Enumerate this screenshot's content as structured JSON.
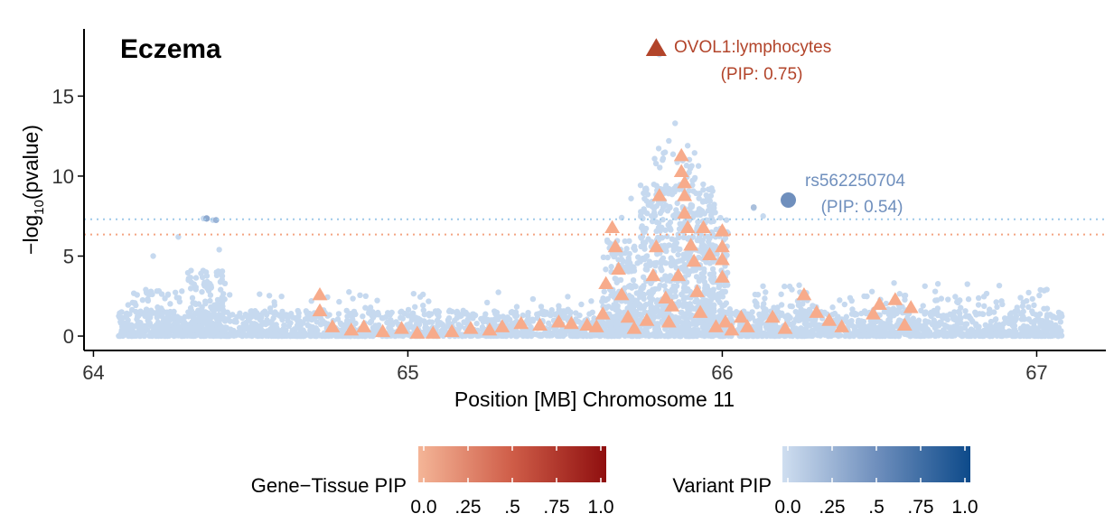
{
  "chart_data": {
    "type": "scatter",
    "title": "Eczema",
    "xlabel": "Position [MB] Chromosome 11",
    "ylabel_prefix": "−log",
    "ylabel_sub": "10",
    "ylabel_suffix": "(pvalue)",
    "xlim": [
      63.97,
      67.22
    ],
    "ylim": [
      -0.9,
      19.2
    ],
    "x_ticks": [
      64,
      65,
      66,
      67
    ],
    "y_ticks": [
      0,
      5,
      10,
      15
    ],
    "x_tick_labels": [
      "64",
      "65",
      "66",
      "67"
    ],
    "y_tick_labels": [
      "0",
      "5",
      "10",
      "15"
    ],
    "thresholds": [
      {
        "y": 7.3,
        "color": "#9ec9ea"
      },
      {
        "y": 6.35,
        "color": "#f4a582"
      }
    ],
    "highlights": [
      {
        "type": "gene_tissue",
        "x": 65.79,
        "y": 18.0,
        "color": "#b2442a",
        "label": "OVOL1:lymphocytes",
        "pip_label": "(PIP: 0.75)"
      },
      {
        "type": "variant",
        "x": 66.21,
        "y": 8.5,
        "color": "#6f8fbd",
        "label": "rs562250704",
        "pip_label": "(PIP: 0.54)"
      }
    ],
    "gene_tissue_points": [
      [
        64.72,
        2.6
      ],
      [
        64.72,
        1.6
      ],
      [
        64.76,
        0.6
      ],
      [
        64.82,
        0.4
      ],
      [
        64.86,
        0.6
      ],
      [
        64.92,
        0.3
      ],
      [
        64.98,
        0.5
      ],
      [
        65.03,
        0.2
      ],
      [
        65.08,
        0.2
      ],
      [
        65.14,
        0.3
      ],
      [
        65.2,
        0.5
      ],
      [
        65.26,
        0.4
      ],
      [
        65.3,
        0.6
      ],
      [
        65.36,
        0.8
      ],
      [
        65.42,
        0.7
      ],
      [
        65.48,
        0.9
      ],
      [
        65.52,
        0.8
      ],
      [
        65.57,
        0.7
      ],
      [
        65.6,
        0.6
      ],
      [
        65.62,
        1.4
      ],
      [
        65.63,
        3.3
      ],
      [
        65.65,
        6.8
      ],
      [
        65.66,
        5.6
      ],
      [
        65.67,
        4.2
      ],
      [
        65.68,
        2.6
      ],
      [
        65.7,
        1.2
      ],
      [
        65.72,
        0.5
      ],
      [
        65.76,
        1.0
      ],
      [
        65.78,
        3.8
      ],
      [
        65.79,
        5.6
      ],
      [
        65.8,
        8.8
      ],
      [
        65.82,
        2.4
      ],
      [
        65.83,
        0.9
      ],
      [
        65.84,
        1.9
      ],
      [
        65.86,
        3.8
      ],
      [
        65.87,
        11.3
      ],
      [
        65.87,
        10.3
      ],
      [
        65.88,
        9.6
      ],
      [
        65.88,
        8.8
      ],
      [
        65.88,
        7.7
      ],
      [
        65.89,
        6.8
      ],
      [
        65.9,
        5.7
      ],
      [
        65.91,
        4.7
      ],
      [
        65.92,
        2.8
      ],
      [
        65.93,
        1.5
      ],
      [
        65.94,
        6.8
      ],
      [
        65.96,
        5.1
      ],
      [
        65.98,
        0.6
      ],
      [
        66.0,
        6.6
      ],
      [
        66.0,
        5.6
      ],
      [
        66.0,
        4.8
      ],
      [
        66.0,
        3.7
      ],
      [
        66.01,
        0.9
      ],
      [
        66.03,
        0.4
      ],
      [
        66.06,
        1.2
      ],
      [
        66.08,
        0.6
      ],
      [
        66.16,
        1.2
      ],
      [
        66.2,
        0.5
      ],
      [
        66.26,
        2.6
      ],
      [
        66.3,
        1.5
      ],
      [
        66.34,
        1.0
      ],
      [
        66.38,
        0.6
      ],
      [
        66.48,
        1.4
      ],
      [
        66.5,
        2.0
      ],
      [
        66.55,
        2.3
      ],
      [
        66.58,
        0.7
      ],
      [
        66.6,
        1.8
      ]
    ],
    "legends": [
      {
        "title": "Gene−Tissue PIP",
        "colors": [
          "#f4a582",
          "#d6604d",
          "#b2182b",
          "#67000d"
        ],
        "tick_labels": [
          "0.0",
          ".25",
          ".5",
          ".75",
          "1.0"
        ]
      },
      {
        "title": "Variant PIP",
        "colors": [
          "#c6dbef",
          "#6f8fbd",
          "#2166ac",
          "#08306b"
        ],
        "tick_labels": [
          "0.0",
          ".25",
          ".5",
          ".75",
          "1.0"
        ]
      }
    ],
    "grid": false
  }
}
